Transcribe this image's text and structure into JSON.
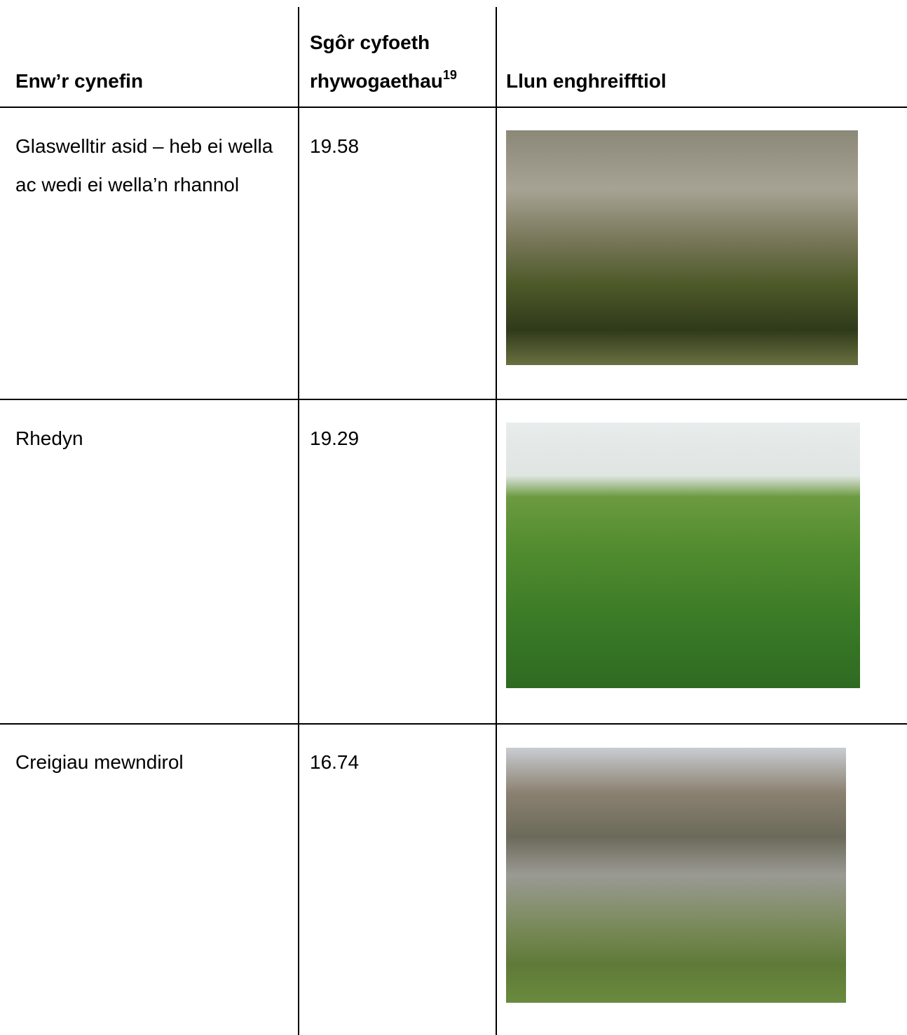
{
  "header": [
    {
      "text": "Enw’r cynefin"
    },
    {
      "text": "Sgôr cyfoeth rhywogaethau",
      "footnote": "19"
    },
    {
      "text": "Llun enghreifftiol"
    }
  ],
  "rows": [
    {
      "name": "Glaswelltir asid – heb ei wella ac wedi ei wella’n rhannol",
      "score": 19.58
    },
    {
      "name": "Rhedyn",
      "score": 19.29
    },
    {
      "name": "Creigiau mewndirol",
      "score": 16.74
    }
  ]
}
